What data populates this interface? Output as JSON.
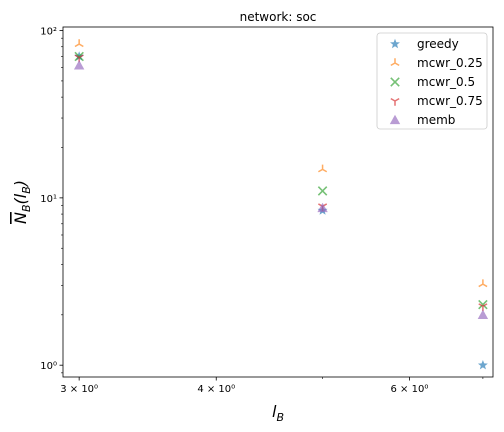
{
  "chart_data": {
    "type": "scatter",
    "title": "network: soc",
    "xlabel": "l_B",
    "ylabel": "N_B(l_B)",
    "xscale": "log",
    "yscale": "log",
    "xlim": [
      2.9,
      7.15
    ],
    "ylim": [
      0.85,
      105
    ],
    "grid": false,
    "legend_position": "top-right",
    "x_major_ticks": [
      {
        "value": 3,
        "label": "3 × 10⁰"
      },
      {
        "value": 4,
        "label": "4 × 10⁰"
      },
      {
        "value": 6,
        "label": "6 × 10⁰"
      }
    ],
    "y_major_ticks": [
      {
        "value": 1,
        "label": "10⁰"
      },
      {
        "value": 10,
        "label": "10¹"
      },
      {
        "value": 100,
        "label": "10²"
      }
    ],
    "x": [
      3,
      5,
      7
    ],
    "series": [
      {
        "name": "greedy",
        "marker": "star",
        "color": "#1f77b4",
        "values": [
          70,
          8.4,
          1.0
        ]
      },
      {
        "name": "mcwr_0.25",
        "marker": "tri_up",
        "color": "#ff7f0e",
        "values": [
          83,
          14.8,
          3.05
        ]
      },
      {
        "name": "mcwr_0.5",
        "marker": "x",
        "color": "#2ca02c",
        "values": [
          70,
          11.0,
          2.3
        ]
      },
      {
        "name": "mcwr_0.75",
        "marker": "tri_down",
        "color": "#d62728",
        "values": [
          69,
          8.9,
          2.25
        ]
      },
      {
        "name": "memb",
        "marker": "triangle",
        "color": "#9467bd",
        "values": [
          62,
          8.7,
          2.0
        ]
      }
    ]
  }
}
